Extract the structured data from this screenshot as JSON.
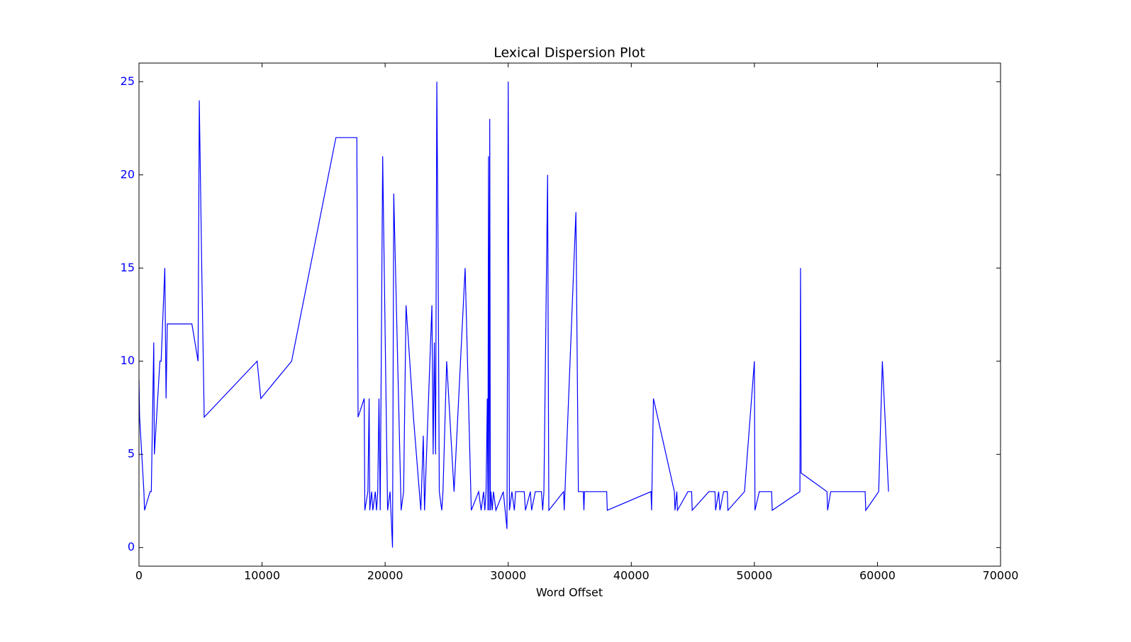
{
  "chart_data": {
    "type": "line",
    "title": "Lexical Dispersion Plot",
    "x_label": "Word Offset",
    "x": [
      0,
      50,
      400,
      450,
      900,
      1000,
      1200,
      1250,
      1700,
      1800,
      2100,
      2200,
      2300,
      4300,
      4800,
      4900,
      5100,
      5300,
      9600,
      9900,
      12400,
      16000,
      17700,
      17800,
      18300,
      18350,
      18600,
      18700,
      18750,
      18900,
      19000,
      19200,
      19300,
      19400,
      19500,
      19600,
      19800,
      20200,
      20400,
      20600,
      20700,
      21300,
      21500,
      21700,
      22200,
      22300,
      22900,
      23100,
      23200,
      23800,
      23900,
      24000,
      24100,
      24200,
      24300,
      24400,
      24600,
      24700,
      25000,
      25600,
      26500,
      27000,
      27600,
      27800,
      28000,
      28100,
      28200,
      28300,
      28350,
      28400,
      28450,
      28500,
      28550,
      28600,
      28700,
      28800,
      29000,
      29600,
      29900,
      30000,
      30100,
      30300,
      30500,
      30600,
      31300,
      31400,
      31800,
      31900,
      32200,
      32700,
      32800,
      32900,
      33200,
      33300,
      34500,
      34550,
      35500,
      35700,
      36100,
      36150,
      36200,
      38000,
      38050,
      41600,
      41650,
      41800,
      43500,
      43550,
      43700,
      43750,
      44600,
      44900,
      44950,
      46300,
      46800,
      46850,
      47100,
      47200,
      47500,
      47800,
      47850,
      49200,
      50000,
      50050,
      50400,
      51400,
      51450,
      53700,
      53750,
      53800,
      55900,
      55950,
      56200,
      59000,
      59050,
      60100,
      60400,
      60900
    ],
    "series": [
      {
        "color": "#0000ff",
        "values": [
          9,
          7,
          3,
          2,
          3,
          3,
          11,
          5,
          10,
          10,
          15,
          8,
          12,
          12,
          10,
          24,
          15,
          7,
          10,
          8,
          10,
          22,
          22,
          7,
          8,
          2,
          3,
          8,
          2,
          3,
          2,
          3,
          2,
          3,
          8,
          2,
          21,
          2,
          3,
          0,
          19,
          2,
          3,
          13,
          8,
          7,
          2,
          6,
          2,
          13,
          5,
          11,
          5,
          25,
          16,
          3,
          2,
          3,
          10,
          3,
          15,
          2,
          3,
          2,
          3,
          2,
          3,
          8,
          2,
          21,
          2,
          23,
          2,
          3,
          2,
          3,
          2,
          3,
          1,
          25,
          2,
          3,
          2,
          3,
          3,
          2,
          3,
          2,
          3,
          3,
          2,
          3,
          20,
          2,
          3,
          2,
          18,
          3,
          3,
          2,
          3,
          3,
          2,
          3,
          2,
          8,
          3,
          2,
          3,
          2,
          3,
          3,
          2,
          3,
          3,
          2,
          3,
          2,
          3,
          3,
          2,
          3,
          10,
          2,
          3,
          3,
          2,
          3,
          15,
          4,
          3,
          2,
          3,
          3,
          2,
          3,
          10,
          3
        ]
      }
    ],
    "xlim": [
      0,
      70000
    ],
    "xticks": [
      0,
      10000,
      20000,
      30000,
      40000,
      50000,
      60000,
      70000
    ],
    "ylim": [
      -1,
      26
    ],
    "yticks": [
      0,
      5,
      10,
      15,
      20,
      25
    ],
    "ytick_color": "#0000ff",
    "grid": false
  }
}
